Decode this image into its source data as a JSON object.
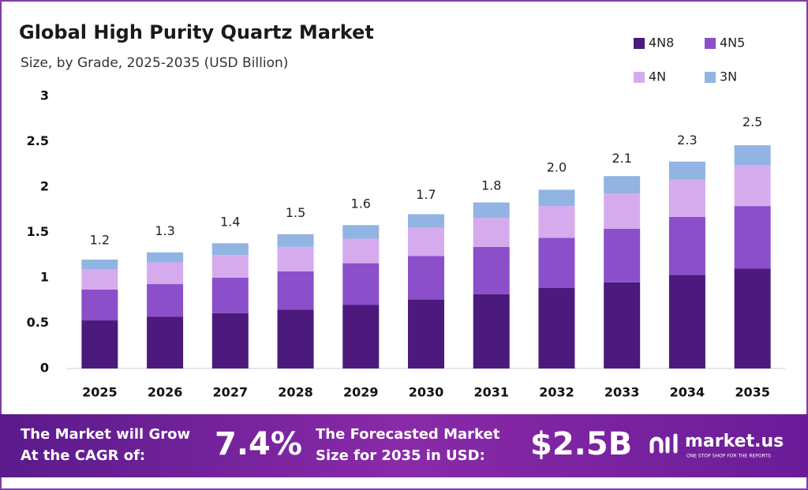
{
  "chart_data": {
    "type": "stacked-bar",
    "title": "Global High Purity Quartz Market",
    "subtitle": "Size, by Grade, 2025-2035 (USD Billion)",
    "categories": [
      "2025",
      "2026",
      "2027",
      "2028",
      "2029",
      "2030",
      "2031",
      "2032",
      "2033",
      "2034",
      "2035"
    ],
    "series": [
      {
        "name": "4N8",
        "color": "#4b1a7c",
        "values": [
          0.53,
          0.57,
          0.61,
          0.65,
          0.7,
          0.76,
          0.82,
          0.89,
          0.95,
          1.03,
          1.1
        ]
      },
      {
        "name": "4N5",
        "color": "#8b4fca",
        "values": [
          0.34,
          0.36,
          0.39,
          0.42,
          0.46,
          0.48,
          0.52,
          0.55,
          0.59,
          0.64,
          0.69
        ]
      },
      {
        "name": "4N",
        "color": "#d6abee",
        "values": [
          0.22,
          0.24,
          0.25,
          0.27,
          0.27,
          0.31,
          0.32,
          0.35,
          0.39,
          0.41,
          0.45
        ]
      },
      {
        "name": "3N",
        "color": "#92b4e2",
        "values": [
          0.11,
          0.11,
          0.13,
          0.14,
          0.15,
          0.15,
          0.17,
          0.18,
          0.19,
          0.2,
          0.22
        ]
      }
    ],
    "totals": {
      "values": [
        1.2,
        1.3,
        1.4,
        1.5,
        1.6,
        1.7,
        1.8,
        2.0,
        2.1,
        2.3,
        2.5
      ],
      "value_labels": [
        "1.2",
        "1.3",
        "1.4",
        "1.5",
        "1.6",
        "1.7",
        "1.8",
        "2.0",
        "2.1",
        "2.3",
        "2.5"
      ]
    },
    "ylim": [
      0,
      3
    ],
    "yticks": [
      0,
      0.5,
      1,
      1.5,
      2,
      2.5,
      3
    ],
    "grid": false,
    "legend": "top-right"
  },
  "banner": {
    "cagr_text": [
      "The Market will Grow",
      "At the CAGR of:"
    ],
    "cagr": "7.4%",
    "forecast_text": [
      "The Forecasted Market",
      "Size for 2035 in USD:"
    ],
    "forecast": "$2.5B",
    "brand": "market.us",
    "tagline": "ONE STOP SHOP FOR THE REPORTS"
  }
}
